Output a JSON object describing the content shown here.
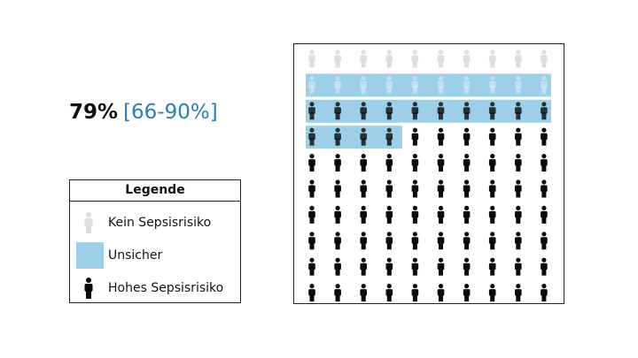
{
  "headline": {
    "percent": "79%",
    "interval": "[66-90%]"
  },
  "legend": {
    "title": "Legende",
    "items": [
      {
        "label": "Kein Sepsisrisiko",
        "icon": "person-icon",
        "color": "#dedede"
      },
      {
        "label": "Unsicher",
        "icon": "swatch",
        "color": "#9dd0e8"
      },
      {
        "label": "Hohes Sepsisrisiko",
        "icon": "person-icon",
        "color": "#0a0a0a"
      }
    ]
  },
  "chart_data": {
    "type": "icon_array",
    "total": 100,
    "rows": 10,
    "columns": 10,
    "estimate_percent": 79,
    "interval_percent": [
      66,
      90
    ],
    "counts": {
      "Kein Sepsisrisiko": 10,
      "Unsicher": 24,
      "Hohes Sepsisrisiko": 66
    },
    "colors": {
      "no_risk": "#dedede",
      "uncertain_band": "#9dd0e8",
      "high_risk": "#0a0a0a"
    }
  }
}
